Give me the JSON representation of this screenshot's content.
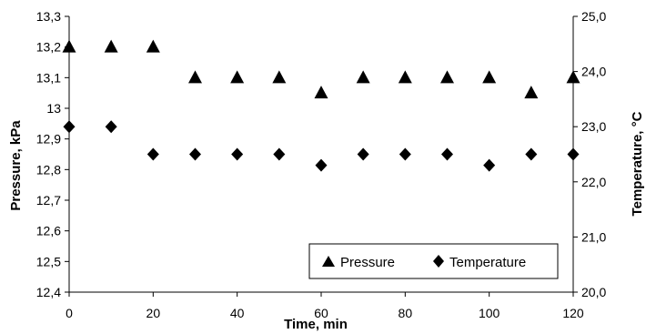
{
  "chart_data": {
    "type": "scatter",
    "x": [
      0,
      10,
      20,
      30,
      40,
      50,
      60,
      70,
      80,
      90,
      100,
      110,
      120
    ],
    "xlabel": "Time, min",
    "xlim": [
      0,
      120
    ],
    "xticks": [
      "0",
      "20",
      "40",
      "60",
      "80",
      "100",
      "120"
    ],
    "ylabel": "Pressure, kPa",
    "ylim": [
      12.4,
      13.3
    ],
    "yticks": [
      "12,4",
      "12,5",
      "12,6",
      "12,7",
      "12,8",
      "12,9",
      "13",
      "13,1",
      "13,2",
      "13,3"
    ],
    "y2label": "Temperature, °C",
    "y2lim": [
      20.0,
      25.0
    ],
    "y2ticks": [
      "20,0",
      "21,0",
      "22,0",
      "23,0",
      "24,0",
      "25,0"
    ],
    "grid": false,
    "legend": "bottom-right",
    "series": [
      {
        "name": "Pressure",
        "axis": "left",
        "marker": "triangle",
        "color": "#000000",
        "values": [
          13.2,
          13.2,
          13.2,
          13.1,
          13.1,
          13.1,
          13.05,
          13.1,
          13.1,
          13.1,
          13.1,
          13.05,
          13.1
        ]
      },
      {
        "name": "Temperature",
        "axis": "right",
        "marker": "diamond",
        "color": "#000000",
        "values": [
          23.0,
          23.0,
          22.5,
          22.5,
          22.5,
          22.5,
          22.3,
          22.5,
          22.5,
          22.5,
          22.3,
          22.5,
          22.5
        ]
      }
    ]
  }
}
